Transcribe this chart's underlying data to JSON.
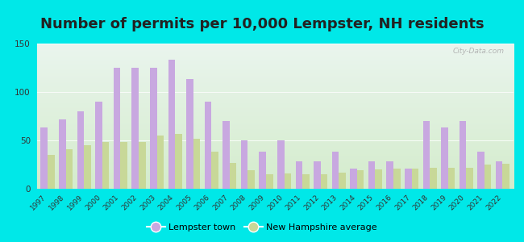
{
  "title": "Number of permits per 10,000 Lempster, NH residents",
  "years": [
    1997,
    1998,
    1999,
    2000,
    2001,
    2002,
    2003,
    2004,
    2005,
    2006,
    2007,
    2008,
    2009,
    2010,
    2011,
    2012,
    2013,
    2014,
    2015,
    2016,
    2017,
    2018,
    2019,
    2020,
    2021,
    2022
  ],
  "lempster": [
    63,
    72,
    80,
    90,
    125,
    125,
    125,
    133,
    113,
    90,
    70,
    50,
    38,
    50,
    28,
    28,
    38,
    21,
    28,
    28,
    21,
    70,
    63,
    70,
    38,
    28
  ],
  "nh_avg": [
    35,
    41,
    45,
    48,
    48,
    48,
    55,
    57,
    52,
    38,
    27,
    19,
    15,
    16,
    15,
    15,
    17,
    19,
    20,
    21,
    21,
    22,
    22,
    22,
    25,
    26
  ],
  "lempster_color": "#c8a8e0",
  "nh_avg_color": "#c8d898",
  "background_outer": "#00e8e8",
  "background_inner_top": "#eaf5ee",
  "background_inner_bottom": "#d4eccc",
  "ylim": [
    0,
    150
  ],
  "yticks": [
    0,
    50,
    100,
    150
  ],
  "title_fontsize": 13,
  "title_color": "#222222",
  "legend_label_lempster": "Lempster town",
  "legend_label_nh": "New Hampshire average",
  "bar_width": 0.38,
  "watermark": "City-Data.com"
}
